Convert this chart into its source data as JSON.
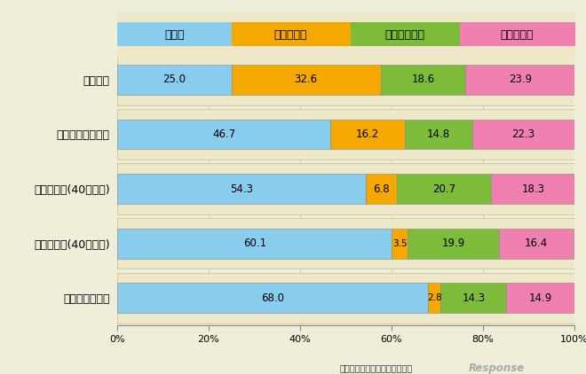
{
  "categories": [
    "三大都市",
    "政令指定市クラス",
    "県庁所在地(40万以上)",
    "県庁所在地(40万未満)",
    "その他地方都市"
  ],
  "series": [
    {
      "label": "自動車",
      "values": [
        25.0,
        46.7,
        54.3,
        60.1,
        68.0
      ],
      "color": "#88CCEE"
    },
    {
      "label": "鉄道・バス",
      "values": [
        32.6,
        16.2,
        6.8,
        3.5,
        2.8
      ],
      "color": "#F5A800"
    },
    {
      "label": "自転車・二輪",
      "values": [
        18.6,
        14.8,
        20.7,
        19.9,
        14.3
      ],
      "color": "#7DBB3A"
    },
    {
      "label": "歩行その他",
      "values": [
        23.9,
        22.3,
        18.3,
        16.4,
        14.9
      ],
      "color": "#F080B0"
    }
  ],
  "bg_color": "#F0EED8",
  "row_bg_color": "#EDE8C8",
  "grid_color": "#C8C4A0",
  "bar_border_color": "#888888",
  "figsize": [
    6.6,
    4.22
  ],
  "dpi": 100,
  "source_text": "出典：国土交通省資料より作成"
}
